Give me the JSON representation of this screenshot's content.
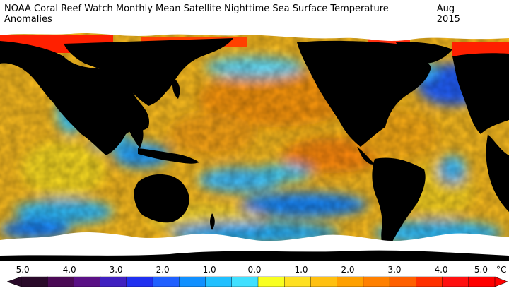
{
  "header": {
    "title": "NOAA Coral Reef Watch Monthly Mean Satellite Nighttime Sea Surface Temperature Anomalies",
    "date": "Aug 2015"
  },
  "map": {
    "land_color": "#000000",
    "ice_color": "#ffffff"
  },
  "colorbar": {
    "unit": "°C",
    "tick_labels": [
      "-5.0",
      "-4.0",
      "-3.0",
      "-2.0",
      "-1.0",
      "0.0",
      "1.0",
      "2.0",
      "3.0",
      "4.0",
      "5.0"
    ],
    "colors": [
      "#2a0a2a",
      "#4b0a55",
      "#5a1085",
      "#4020c0",
      "#2030f0",
      "#2060ff",
      "#1090ff",
      "#20c0ff",
      "#40e0ff",
      "#f8ff20",
      "#ffe020",
      "#ffc010",
      "#ffa000",
      "#ff8000",
      "#ff6000",
      "#ff3000",
      "#ff1010",
      "#ff0000"
    ]
  }
}
